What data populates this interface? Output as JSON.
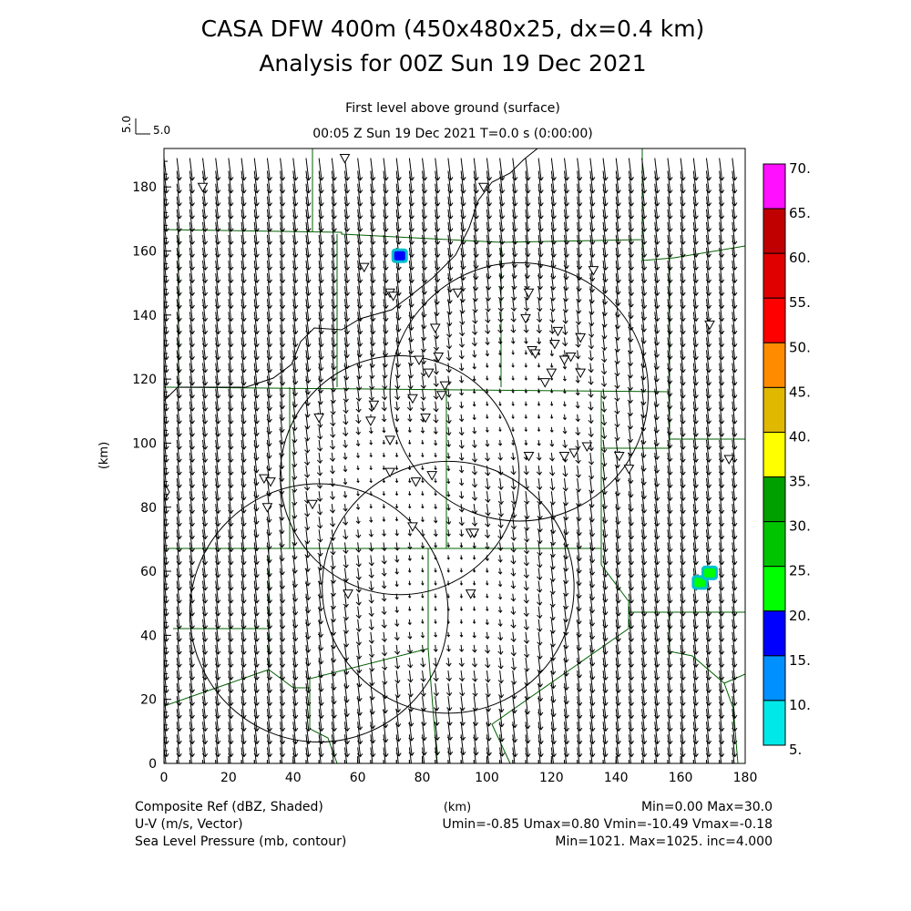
{
  "header": {
    "title_line1": "CASA DFW 400m (450x480x25, dx=0.4 km)",
    "title_line2": "Analysis for 00Z Sun 19 Dec 2021",
    "level_label": "First level above ground (surface)",
    "time_label": "00:05 Z Sun 19 Dec 2021    T=0.0 s (0:00:00)",
    "vector_ref_label": "5.0",
    "vector_ref_vertical_label": "5.0"
  },
  "axes": {
    "x_label": "(km)",
    "y_label": "(km)",
    "x_ticks": [
      "0",
      "20",
      "40",
      "60",
      "80",
      "100",
      "120",
      "140",
      "160",
      "180"
    ],
    "y_ticks": [
      "0",
      "20",
      "40",
      "60",
      "80",
      "100",
      "120",
      "140",
      "160",
      "180"
    ],
    "x_range_km": [
      0,
      180
    ],
    "y_range_km": [
      0,
      192
    ]
  },
  "colorbar": {
    "labels": [
      "70.",
      "65.",
      "60.",
      "55.",
      "50.",
      "45.",
      "40.",
      "35.",
      "30.",
      "25.",
      "20.",
      "15.",
      "10.",
      "5."
    ],
    "colors_top_to_bottom": [
      "#ff10ff",
      "#c00000",
      "#e00000",
      "#ff0000",
      "#ff8c00",
      "#e0b800",
      "#ffff00",
      "#00a000",
      "#00c400",
      "#00ff00",
      "#0000ff",
      "#0090ff",
      "#00e8e8"
    ]
  },
  "footer": {
    "left1": "Composite Ref (dBZ, Shaded)",
    "left2": "U-V (m/s, Vector)",
    "left3": "Sea Level Pressure (mb, contour)",
    "center1": "(km)",
    "right1": "Min=0.00 Max=30.0",
    "right2": "Umin=-0.85 Umax=0.80 Vmin=-10.49 Vmax=-0.18",
    "right3": "Min=1021. Max=1025. inc=4.000"
  },
  "map": {
    "radar_range_rings_km": [
      {
        "cx": 48,
        "cy": 47,
        "r": 40
      },
      {
        "cx": 73,
        "cy": 90,
        "r": 37
      },
      {
        "cx": 88,
        "cy": 55,
        "r": 39
      },
      {
        "cx": 110,
        "cy": 116,
        "r": 40
      }
    ],
    "stations_km": [
      [
        12,
        180
      ],
      [
        56,
        189
      ],
      [
        99,
        180
      ],
      [
        62,
        155
      ],
      [
        70,
        147
      ],
      [
        71,
        146
      ],
      [
        133,
        154
      ],
      [
        91,
        147
      ],
      [
        113,
        147
      ],
      [
        84,
        136
      ],
      [
        112,
        139
      ],
      [
        122,
        135
      ],
      [
        121,
        131
      ],
      [
        129,
        133
      ],
      [
        114,
        129
      ],
      [
        115,
        128
      ],
      [
        126,
        127
      ],
      [
        124,
        126
      ],
      [
        79,
        126
      ],
      [
        85,
        127
      ],
      [
        82,
        122
      ],
      [
        87,
        118
      ],
      [
        86,
        115
      ],
      [
        120,
        122
      ],
      [
        118,
        119
      ],
      [
        129,
        122
      ],
      [
        77,
        114
      ],
      [
        65,
        112
      ],
      [
        81,
        108
      ],
      [
        64,
        107
      ],
      [
        48,
        108
      ],
      [
        70,
        101
      ],
      [
        127,
        97
      ],
      [
        124,
        96
      ],
      [
        131,
        99
      ],
      [
        113,
        96
      ],
      [
        141,
        96
      ],
      [
        144,
        92
      ],
      [
        175,
        95
      ],
      [
        70,
        91
      ],
      [
        78,
        88
      ],
      [
        83,
        90
      ],
      [
        31,
        89
      ],
      [
        33,
        88
      ],
      [
        32,
        80
      ],
      [
        46,
        81
      ],
      [
        77,
        74
      ],
      [
        95,
        72
      ],
      [
        96,
        72
      ],
      [
        57,
        53
      ],
      [
        95,
        53
      ],
      [
        169,
        137
      ]
    ],
    "reflectivity_blobs_km": [
      {
        "x": 73,
        "y": 158.5,
        "dbz": 20
      },
      {
        "x": 166,
        "y": 56.5,
        "dbz": 25
      },
      {
        "x": 169,
        "y": 59.5,
        "dbz": 25
      }
    ],
    "wind_field": {
      "u_min": -0.85,
      "u_max": 0.8,
      "v_min": -10.49,
      "v_max": -0.18
    }
  }
}
